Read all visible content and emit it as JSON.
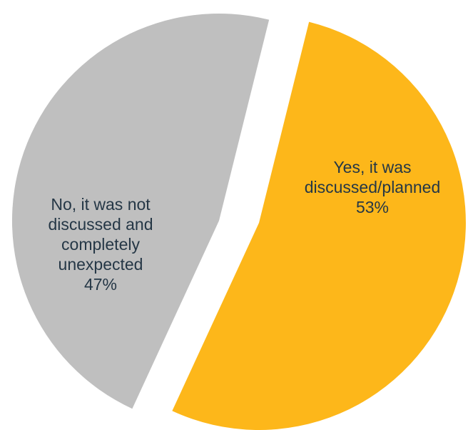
{
  "chart_data": {
    "type": "pie",
    "slices": [
      {
        "label": "Yes, it was discussed/planned",
        "label_lines": [
          "Yes, it was",
          "discussed/planned"
        ],
        "value": 53,
        "value_label": "53%",
        "color": "#FDB71A"
      },
      {
        "label": "No, it was not discussed and completely unexpected",
        "label_lines": [
          "No, it was not",
          "discussed and",
          "completely",
          "unexpected"
        ],
        "value": 47,
        "value_label": "47%",
        "color": "#BFBFBF"
      }
    ],
    "exploded": true,
    "legend": "none",
    "label_color": "#253746"
  }
}
